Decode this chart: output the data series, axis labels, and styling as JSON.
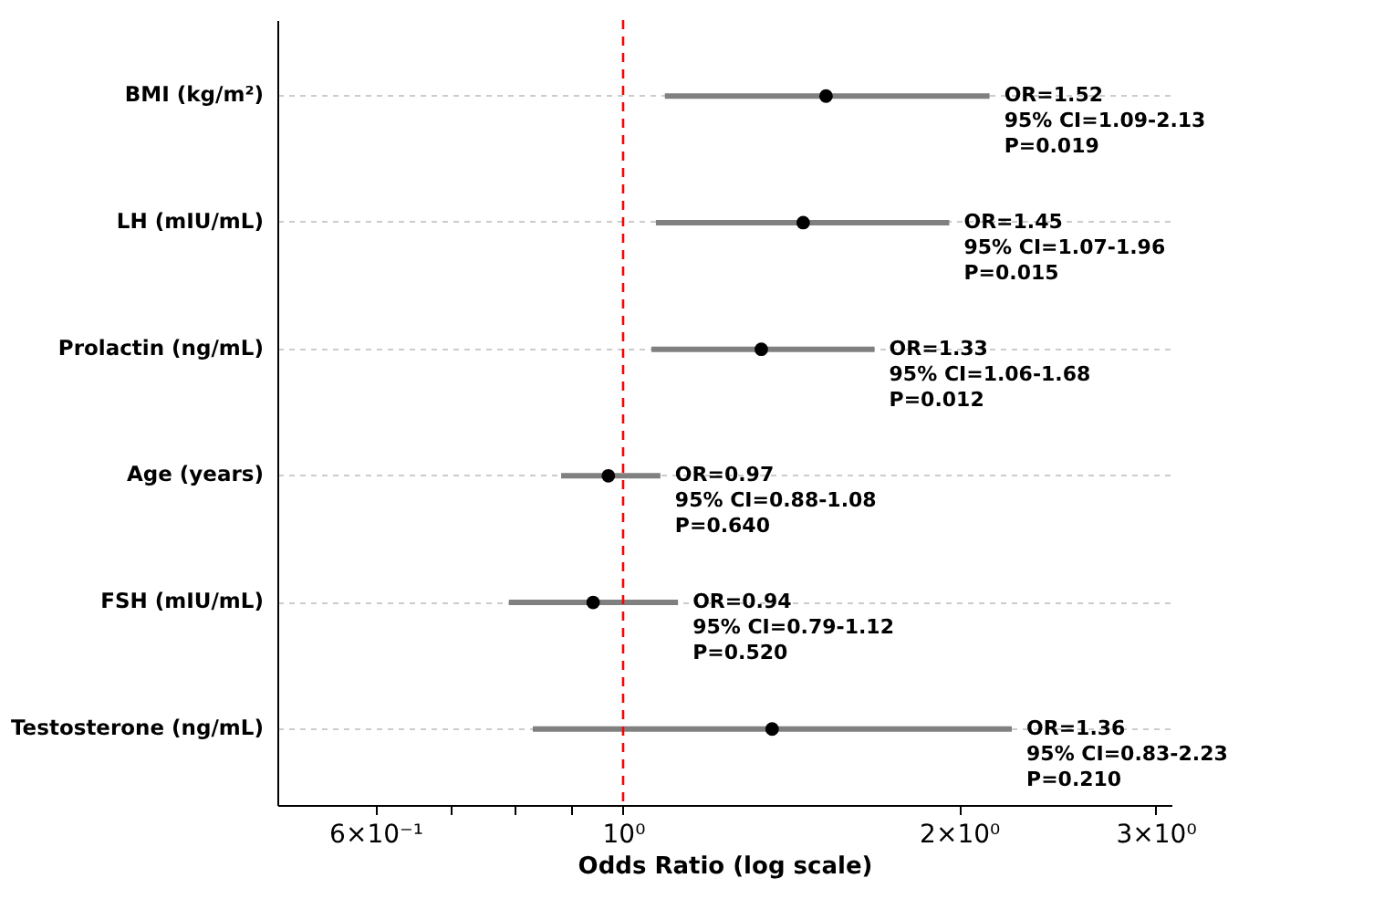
{
  "chart_data": {
    "type": "scatter",
    "orientation": "horizontal",
    "xlabel": "Odds Ratio (log scale)",
    "categories": [
      "BMI (kg/m²)",
      "LH (mIU/mL)",
      "Prolactin (ng/mL)",
      "Age (years)",
      "FSH (mIU/mL)",
      "Testosterone (ng/mL)"
    ],
    "series": [
      {
        "color": "#000000",
        "values": [
          1.52,
          1.45,
          1.33,
          0.97,
          0.94,
          1.36
        ],
        "errors": [
          [
            1.09,
            2.13
          ],
          [
            1.07,
            1.96
          ],
          [
            1.06,
            1.68
          ],
          [
            0.88,
            1.08
          ],
          [
            0.79,
            1.12
          ],
          [
            0.83,
            2.23
          ]
        ]
      }
    ],
    "annotations": [
      "OR=1.52\n95% CI=1.09-2.13\nP=0.019",
      "OR=1.45\n95% CI=1.07-1.96\nP=0.015",
      "OR=1.33\n95% CI=1.06-1.68\nP=0.012",
      "OR=0.97\n95% CI=0.88-1.08\nP=0.640",
      "OR=0.94\n95% CI=0.79-1.12\nP=0.520",
      "OR=1.36\n95% CI=0.83-2.23\nP=0.210"
    ],
    "log": "x",
    "xlim": [
      0.49,
      3.1
    ],
    "xticks": [
      {
        "value": 0.6,
        "label": "6×10⁻¹"
      },
      {
        "value": 0.7,
        "label": null
      },
      {
        "value": 0.8,
        "label": null
      },
      {
        "value": 0.9,
        "label": null
      },
      {
        "value": 1,
        "label": "10⁰"
      },
      {
        "value": 2,
        "label": "2×10⁰"
      },
      {
        "value": 3,
        "label": "3×10⁰"
      }
    ],
    "grid": "y",
    "marker": "circle",
    "ref_lines": [
      {
        "axis": "x",
        "value": 1,
        "color": "#ff0000",
        "line_style": "dashed"
      }
    ]
  }
}
